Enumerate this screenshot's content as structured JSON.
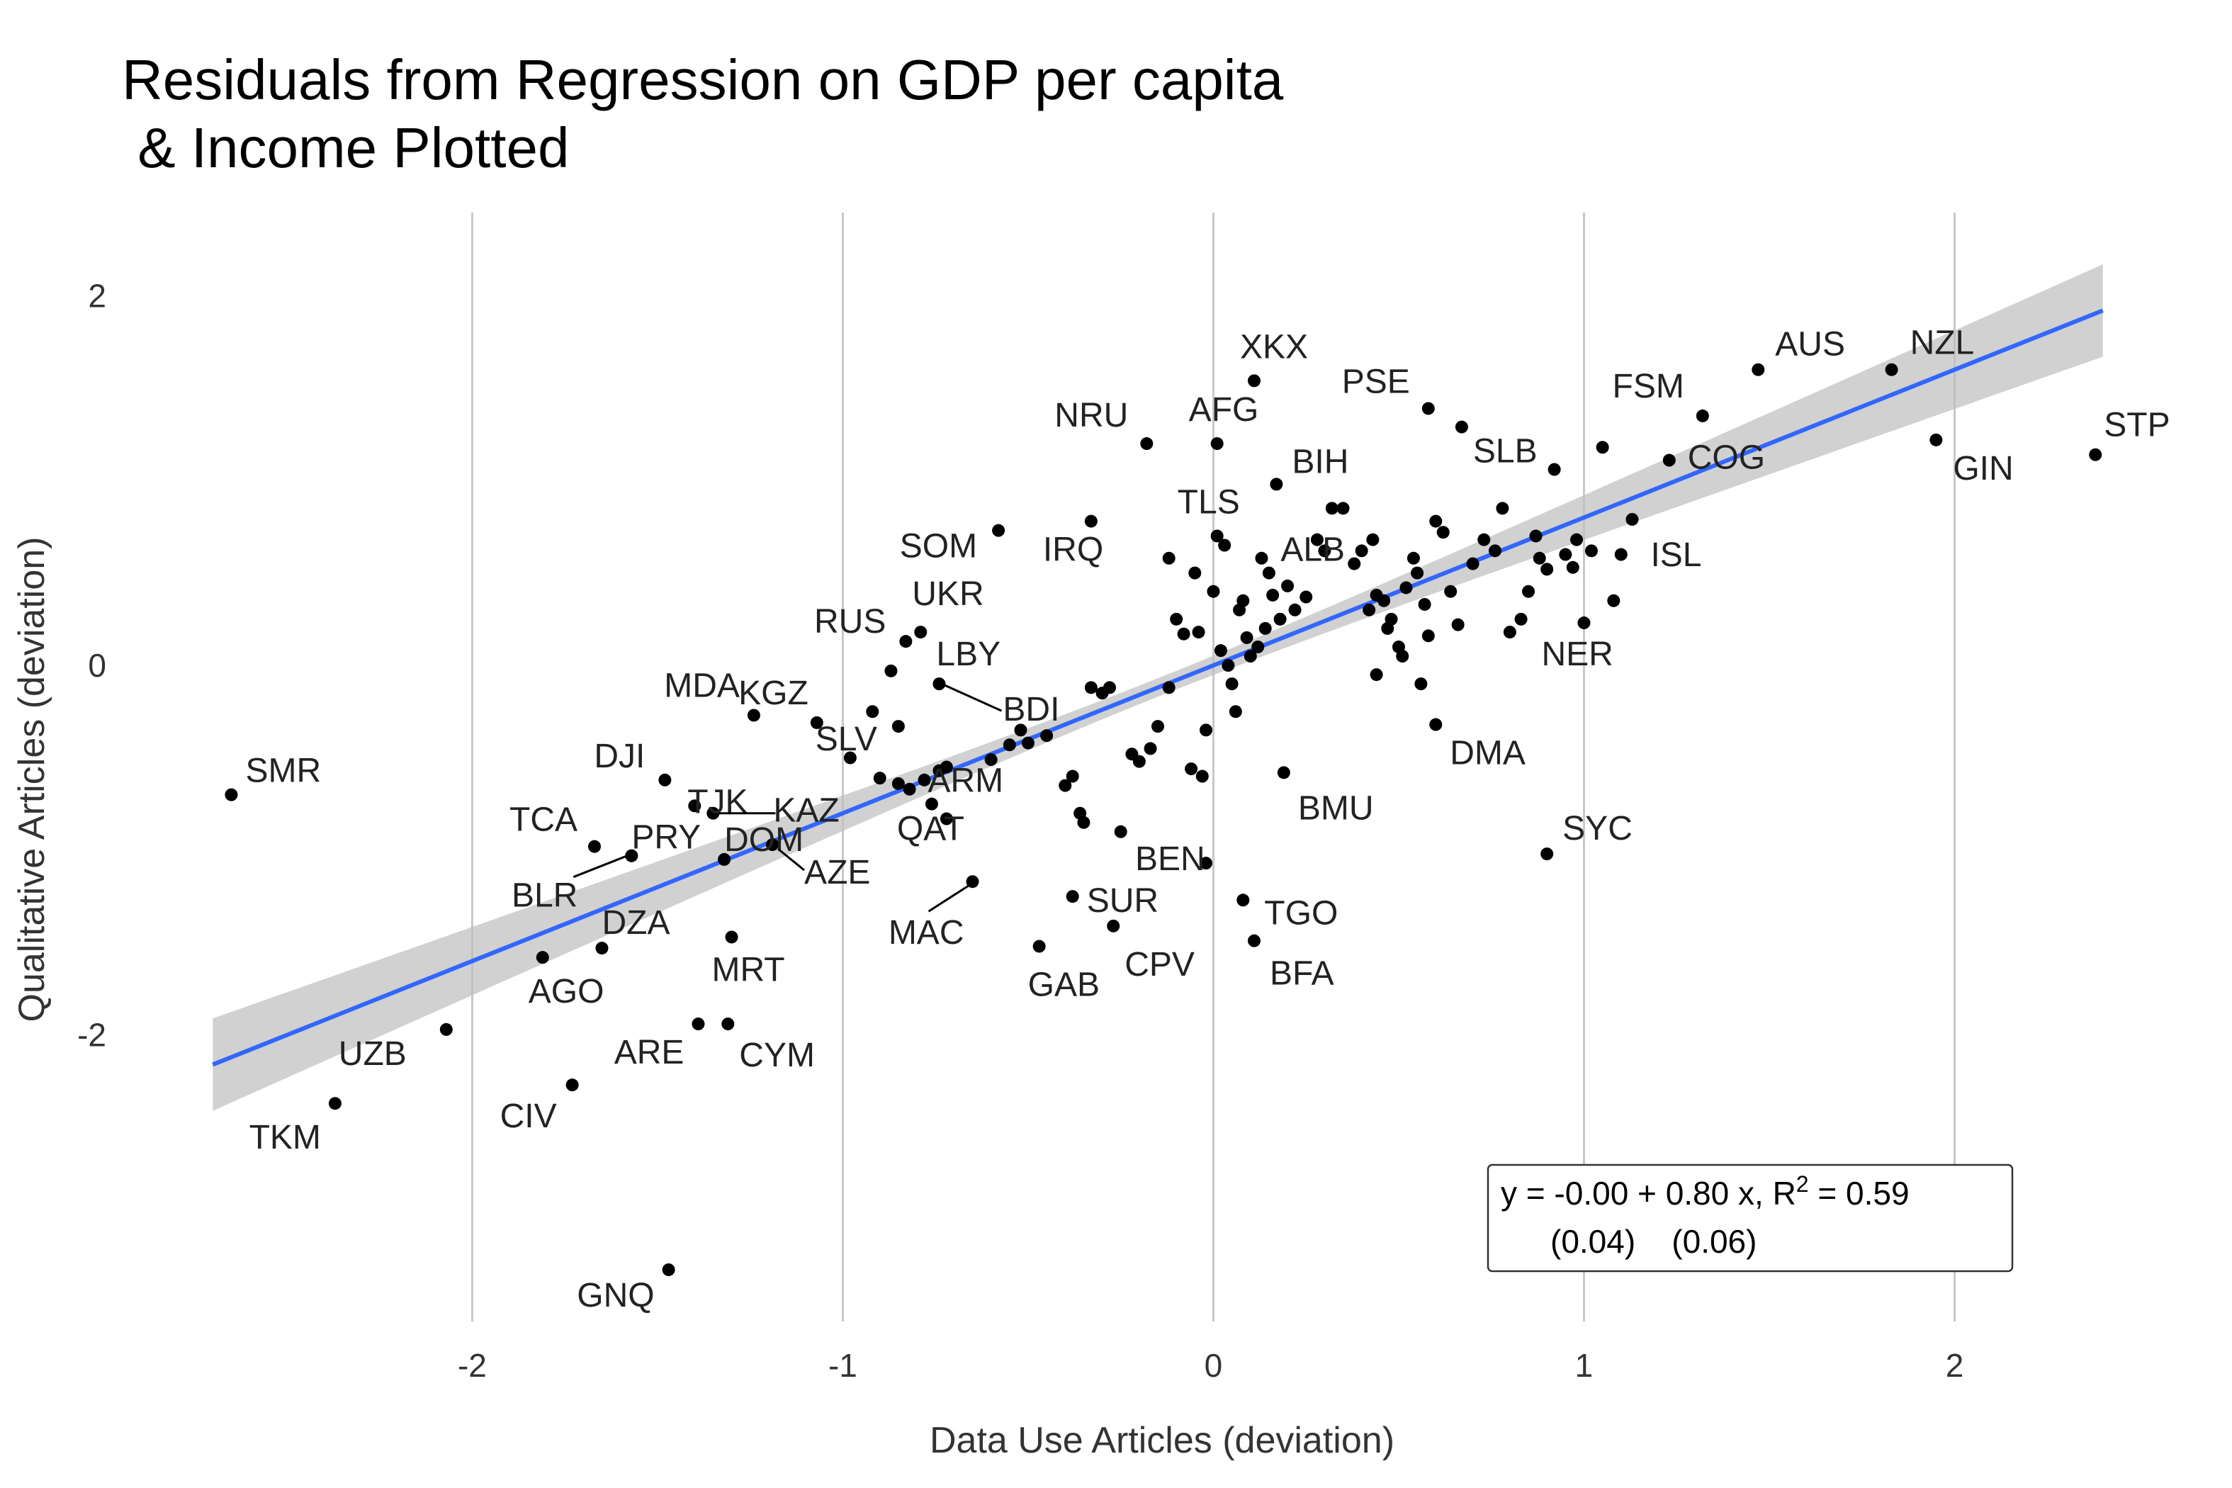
{
  "chart_data": {
    "type": "scatter",
    "title_lines": [
      "Residuals from Regression on GDP per capita",
      " & Income Plotted"
    ],
    "xlabel": "Data Use Articles (deviation)",
    "ylabel": "Qualitative Articles (deviation)",
    "xlim": [
      -2.8,
      2.5
    ],
    "ylim": [
      -3.55,
      2.45
    ],
    "xticks": [
      -2,
      -1,
      0,
      1,
      2
    ],
    "yticks": [
      -2,
      0,
      2
    ],
    "grid": "vertical major lines only",
    "colors": {
      "points": "#000000",
      "fit_line": "#3366ff",
      "confidence_band": "#bdbdbd",
      "grid": "#c8c8c8",
      "text": "#333333"
    },
    "fit": {
      "intercept": -0.0,
      "slope": 0.8,
      "x_range": [
        -2.7,
        2.4
      ],
      "band_halfwidth_at_ends": 0.25,
      "band_halfwidth_at_center": 0.05,
      "equation_line1": "y = -0.00 + 0.80 x, R",
      "r2_superscript": "2",
      "equation_line1_end": " = 0.59",
      "equation_line2": "(0.04)    (0.06)"
    },
    "labeled_points": [
      {
        "label": "SMR",
        "x": -2.65,
        "y": -0.7
      },
      {
        "label": "TKM",
        "x": -2.37,
        "y": -2.37
      },
      {
        "label": "UZB",
        "x": -2.07,
        "y": -1.97
      },
      {
        "label": "AGO",
        "x": -1.81,
        "y": -1.58
      },
      {
        "label": "CIV",
        "x": -1.73,
        "y": -2.27
      },
      {
        "label": "TCA",
        "x": -1.67,
        "y": -0.98
      },
      {
        "label": "BLR",
        "x": -1.57,
        "y": -1.03
      },
      {
        "label": "PRY",
        "x": -1.57,
        "y": -1.03
      },
      {
        "label": "DZA",
        "x": -1.65,
        "y": -1.53
      },
      {
        "label": "DJI",
        "x": -1.48,
        "y": -0.62
      },
      {
        "label": "TJK",
        "x": -1.4,
        "y": -0.76
      },
      {
        "label": "KAZ",
        "x": -1.35,
        "y": -0.8
      },
      {
        "label": "GNQ",
        "x": -1.47,
        "y": -3.27
      },
      {
        "label": "ARE",
        "x": -1.39,
        "y": -1.94
      },
      {
        "label": "CYM",
        "x": -1.31,
        "y": -1.94
      },
      {
        "label": "DOM",
        "x": -1.32,
        "y": -1.05
      },
      {
        "label": "MRT",
        "x": -1.3,
        "y": -1.47
      },
      {
        "label": "AZE",
        "x": -1.19,
        "y": -0.97
      },
      {
        "label": "MDA",
        "x": -1.24,
        "y": -0.27
      },
      {
        "label": "KGZ",
        "x": -1.07,
        "y": -0.31
      },
      {
        "label": "SLV",
        "x": -0.85,
        "y": -0.33
      },
      {
        "label": "RUS",
        "x": -0.83,
        "y": 0.13
      },
      {
        "label": "UKR",
        "x": -0.79,
        "y": 0.18
      },
      {
        "label": "LBY",
        "x": -0.87,
        "y": -0.03
      },
      {
        "label": "BDI",
        "x": -0.74,
        "y": -0.1
      },
      {
        "label": "ARM",
        "x": -0.74,
        "y": -0.57
      },
      {
        "label": "QAT",
        "x": -0.72,
        "y": -0.83
      },
      {
        "label": "SOM",
        "x": -0.58,
        "y": 0.73
      },
      {
        "label": "IRQ",
        "x": -0.33,
        "y": 0.78
      },
      {
        "label": "MAC",
        "x": -0.65,
        "y": -1.17
      },
      {
        "label": "SUR",
        "x": -0.38,
        "y": -1.25
      },
      {
        "label": "GAB",
        "x": -0.47,
        "y": -1.52
      },
      {
        "label": "NRU",
        "x": -0.18,
        "y": 1.2
      },
      {
        "label": "CPV",
        "x": -0.27,
        "y": -1.41
      },
      {
        "label": "BEN",
        "x": -0.02,
        "y": -1.07
      },
      {
        "label": "AFG",
        "x": 0.01,
        "y": 1.2
      },
      {
        "label": "XKX",
        "x": 0.11,
        "y": 1.54
      },
      {
        "label": "TLS",
        "x": 0.01,
        "y": 0.7
      },
      {
        "label": "BIH",
        "x": 0.17,
        "y": 0.98
      },
      {
        "label": "ALB",
        "x": 0.43,
        "y": 0.68
      },
      {
        "label": "BMU",
        "x": 0.19,
        "y": -0.58
      },
      {
        "label": "TGO",
        "x": 0.08,
        "y": -1.27
      },
      {
        "label": "BFA",
        "x": 0.11,
        "y": -1.49
      },
      {
        "label": "PSE",
        "x": 0.58,
        "y": 1.39
      },
      {
        "label": "SLB",
        "x": 0.67,
        "y": 1.29
      },
      {
        "label": "DMA",
        "x": 0.6,
        "y": -0.32
      },
      {
        "label": "FSM",
        "x": 1.32,
        "y": 1.35
      },
      {
        "label": "COG",
        "x": 1.23,
        "y": 1.11
      },
      {
        "label": "ISL",
        "x": 1.13,
        "y": 0.79
      },
      {
        "label": "NER",
        "x": 1.0,
        "y": 0.23
      },
      {
        "label": "SYC",
        "x": 0.9,
        "y": -1.02
      },
      {
        "label": "AUS",
        "x": 1.47,
        "y": 1.6
      },
      {
        "label": "NZL",
        "x": 1.83,
        "y": 1.6
      },
      {
        "label": "GIN",
        "x": 1.95,
        "y": 1.22
      },
      {
        "label": "STP",
        "x": 2.38,
        "y": 1.14
      }
    ],
    "unlabeled_points": [
      [
        -0.92,
        -0.25
      ],
      [
        -0.98,
        -0.5
      ],
      [
        -0.9,
        -0.61
      ],
      [
        -0.85,
        -0.64
      ],
      [
        -0.82,
        -0.67
      ],
      [
        -0.78,
        -0.62
      ],
      [
        -0.76,
        -0.75
      ],
      [
        -0.72,
        -0.55
      ],
      [
        -0.6,
        -0.51
      ],
      [
        -0.55,
        -0.43
      ],
      [
        -0.52,
        -0.35
      ],
      [
        -0.5,
        -0.42
      ],
      [
        -0.45,
        -0.38
      ],
      [
        -0.4,
        -0.65
      ],
      [
        -0.38,
        -0.6
      ],
      [
        -0.36,
        -0.8
      ],
      [
        -0.35,
        -0.85
      ],
      [
        -0.33,
        -0.12
      ],
      [
        -0.3,
        -0.15
      ],
      [
        -0.28,
        -0.12
      ],
      [
        -0.25,
        -0.9
      ],
      [
        -0.22,
        -0.48
      ],
      [
        -0.2,
        -0.52
      ],
      [
        -0.17,
        -0.45
      ],
      [
        -0.15,
        -0.33
      ],
      [
        -0.12,
        -0.12
      ],
      [
        -0.1,
        0.25
      ],
      [
        -0.08,
        0.17
      ],
      [
        -0.05,
        0.5
      ],
      [
        -0.03,
        -0.6
      ],
      [
        -0.06,
        -0.56
      ],
      [
        -0.02,
        -0.35
      ],
      [
        0.0,
        0.4
      ],
      [
        0.02,
        0.08
      ],
      [
        0.04,
        0.0
      ],
      [
        0.05,
        -0.1
      ],
      [
        0.06,
        -0.25
      ],
      [
        0.07,
        0.3
      ],
      [
        0.08,
        0.35
      ],
      [
        0.1,
        0.05
      ],
      [
        0.12,
        0.1
      ],
      [
        0.14,
        0.2
      ],
      [
        0.15,
        0.5
      ],
      [
        0.16,
        0.38
      ],
      [
        0.18,
        0.25
      ],
      [
        0.2,
        0.43
      ],
      [
        0.22,
        0.3
      ],
      [
        0.25,
        0.37
      ],
      [
        0.28,
        0.68
      ],
      [
        0.3,
        0.62
      ],
      [
        0.32,
        0.85
      ],
      [
        0.35,
        0.85
      ],
      [
        0.38,
        0.55
      ],
      [
        0.4,
        0.62
      ],
      [
        0.42,
        0.3
      ],
      [
        0.44,
        0.38
      ],
      [
        0.46,
        0.35
      ],
      [
        0.48,
        0.25
      ],
      [
        0.5,
        0.1
      ],
      [
        0.52,
        0.42
      ],
      [
        0.54,
        0.58
      ],
      [
        0.55,
        0.5
      ],
      [
        0.57,
        0.33
      ],
      [
        0.58,
        0.16
      ],
      [
        0.6,
        0.78
      ],
      [
        0.62,
        0.72
      ],
      [
        0.64,
        0.4
      ],
      [
        0.66,
        0.22
      ],
      [
        0.7,
        0.55
      ],
      [
        0.73,
        0.68
      ],
      [
        0.76,
        0.62
      ],
      [
        0.78,
        0.85
      ],
      [
        0.8,
        0.18
      ],
      [
        0.83,
        0.25
      ],
      [
        0.85,
        0.4
      ],
      [
        0.87,
        0.7
      ],
      [
        0.88,
        0.58
      ],
      [
        0.9,
        0.52
      ],
      [
        0.92,
        1.06
      ],
      [
        0.95,
        0.6
      ],
      [
        0.97,
        0.53
      ],
      [
        0.98,
        0.68
      ],
      [
        1.02,
        0.62
      ],
      [
        1.05,
        1.18
      ],
      [
        1.08,
        0.35
      ],
      [
        1.1,
        0.6
      ],
      [
        -0.12,
        0.58
      ],
      [
        -0.04,
        0.18
      ],
      [
        0.03,
        0.65
      ],
      [
        0.09,
        0.15
      ],
      [
        0.13,
        0.58
      ],
      [
        0.44,
        -0.05
      ],
      [
        0.47,
        0.2
      ],
      [
        0.51,
        0.05
      ],
      [
        0.56,
        -0.1
      ]
    ]
  }
}
